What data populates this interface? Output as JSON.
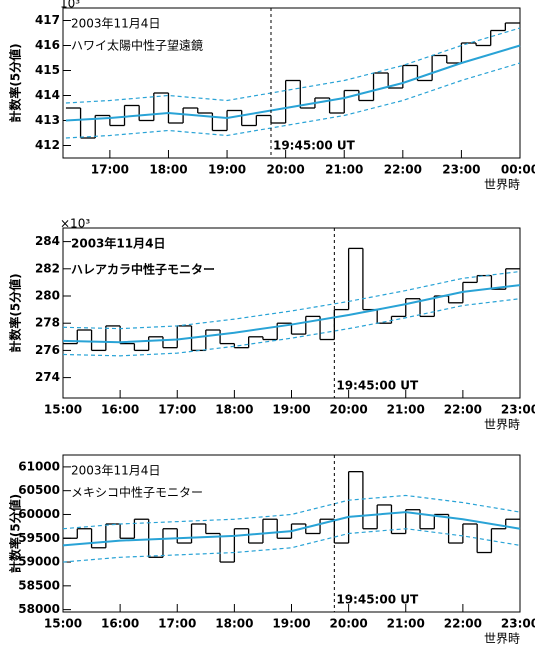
{
  "chart_data": [
    {
      "type": "step",
      "date": "2003年11月4日",
      "station": "ハワイ太陽中性子望遠鏡",
      "multiplier": "10³",
      "ylabel": "計数率(5分値)",
      "xlabel": "世界時",
      "marker": {
        "x": 19.75,
        "label": "19:45:00 UT"
      },
      "xlim": [
        16.2,
        24
      ],
      "xticks": [
        {
          "value": 17,
          "label": "17:00"
        },
        {
          "value": 18,
          "label": "18:00"
        },
        {
          "value": 19,
          "label": "19:00"
        },
        {
          "value": 20,
          "label": "20:00"
        },
        {
          "value": 21,
          "label": "21:00"
        },
        {
          "value": 22,
          "label": "22:00"
        },
        {
          "value": 23,
          "label": "23:00"
        },
        {
          "value": 24,
          "label": "00:00"
        }
      ],
      "ylim": [
        411.5,
        417.5
      ],
      "yticks": [
        412,
        413,
        414,
        415,
        416,
        417
      ],
      "series": [
        {
          "color": "#000000",
          "bins": [
            16.25,
            16.5,
            16.75,
            17,
            17.25,
            17.5,
            17.75,
            18,
            18.25,
            18.5,
            18.75,
            19,
            19.25,
            19.5,
            19.75,
            20,
            20.25,
            20.5,
            20.75,
            21,
            21.25,
            21.5,
            21.75,
            22,
            22.25,
            22.5,
            22.75,
            23,
            23.25,
            23.5,
            23.75,
            24
          ],
          "values": [
            413.5,
            412.3,
            413.2,
            412.8,
            413.6,
            413.0,
            414.1,
            412.9,
            413.5,
            413.3,
            412.6,
            413.4,
            412.8,
            413.2,
            412.9,
            414.6,
            413.5,
            413.9,
            413.3,
            414.2,
            413.8,
            414.9,
            414.3,
            415.2,
            414.6,
            415.6,
            415.3,
            416.1,
            416.0,
            416.6,
            416.9
          ]
        },
        {
          "color": "#29a3d6",
          "x": [
            16.25,
            17,
            18,
            19,
            20,
            21,
            22,
            23,
            24
          ],
          "values": [
            413.0,
            413.1,
            413.3,
            413.1,
            413.5,
            413.9,
            414.5,
            415.3,
            416.0
          ]
        },
        {
          "color": "#29a3d6",
          "style": "dashed",
          "x": [
            16.25,
            17,
            18,
            19,
            20,
            21,
            22,
            23,
            24
          ],
          "values": [
            413.7,
            413.8,
            414.0,
            413.8,
            414.2,
            414.6,
            415.2,
            416.0,
            416.7
          ]
        },
        {
          "color": "#29a3d6",
          "style": "dashed",
          "x": [
            16.25,
            17,
            18,
            19,
            20,
            21,
            22,
            23,
            24
          ],
          "values": [
            412.3,
            412.4,
            412.6,
            412.4,
            412.8,
            413.2,
            413.8,
            414.6,
            415.3
          ]
        }
      ]
    },
    {
      "type": "step",
      "date": "2003年11月4日",
      "station": "ハレアカラ中性子モニター",
      "multiplier": "×10³",
      "ylabel": "計数率(5分値)",
      "xlabel": "世界時",
      "marker": {
        "x": 19.75,
        "label": "19:45:00 UT"
      },
      "xlim": [
        15,
        23
      ],
      "xticks": [
        {
          "value": 15,
          "label": "15:00"
        },
        {
          "value": 16,
          "label": "16:00"
        },
        {
          "value": 17,
          "label": "17:00"
        },
        {
          "value": 18,
          "label": "18:00"
        },
        {
          "value": 19,
          "label": "19:00"
        },
        {
          "value": 20,
          "label": "20:00"
        },
        {
          "value": 21,
          "label": "21:00"
        },
        {
          "value": 22,
          "label": "22:00"
        },
        {
          "value": 23,
          "label": "23:00"
        }
      ],
      "ylim": [
        272.5,
        285
      ],
      "yticks": [
        274,
        276,
        278,
        280,
        282,
        284
      ],
      "series": [
        {
          "color": "#000000",
          "bins": [
            15,
            15.25,
            15.5,
            15.75,
            16,
            16.25,
            16.5,
            16.75,
            17,
            17.25,
            17.5,
            17.75,
            18,
            18.25,
            18.5,
            18.75,
            19,
            19.25,
            19.5,
            19.75,
            20,
            20.25,
            20.5,
            20.75,
            21,
            21.25,
            21.5,
            21.75,
            22,
            22.25,
            22.5,
            22.75,
            23
          ],
          "values": [
            276.5,
            277.5,
            276,
            277.8,
            276.5,
            276,
            277,
            276.2,
            277.8,
            276,
            277.5,
            276.5,
            276.2,
            277,
            276.8,
            278,
            277.2,
            278.5,
            276.8,
            279,
            283.5,
            279,
            278,
            278.5,
            279.8,
            278.5,
            280,
            279.5,
            281,
            281.5,
            280.5,
            282
          ]
        },
        {
          "color": "#29a3d6",
          "x": [
            15,
            16,
            17,
            18,
            19,
            20,
            21,
            22,
            23
          ],
          "values": [
            276.7,
            276.6,
            276.8,
            277.3,
            277.9,
            278.6,
            279.4,
            280.3,
            280.8
          ]
        },
        {
          "color": "#29a3d6",
          "style": "dashed",
          "x": [
            15,
            16,
            17,
            18,
            19,
            20,
            21,
            22,
            23
          ],
          "values": [
            277.7,
            277.6,
            277.8,
            278.3,
            278.9,
            279.6,
            280.4,
            281.3,
            281.8
          ]
        },
        {
          "color": "#29a3d6",
          "style": "dashed",
          "x": [
            15,
            16,
            17,
            18,
            19,
            20,
            21,
            22,
            23
          ],
          "values": [
            275.7,
            275.6,
            275.8,
            276.3,
            276.9,
            277.6,
            278.4,
            279.3,
            279.8
          ]
        }
      ]
    },
    {
      "type": "step",
      "date": "2003年11月4日",
      "station": "メキシコ中性子モニター",
      "ylabel": "計数率(5分値)",
      "xlabel": "世界時",
      "marker": {
        "x": 19.75,
        "label": "19:45:00 UT"
      },
      "xlim": [
        15,
        23
      ],
      "xticks": [
        {
          "value": 15,
          "label": "15:00"
        },
        {
          "value": 16,
          "label": "16:00"
        },
        {
          "value": 17,
          "label": "17:00"
        },
        {
          "value": 18,
          "label": "18:00"
        },
        {
          "value": 19,
          "label": "19:00"
        },
        {
          "value": 20,
          "label": "20:00"
        },
        {
          "value": 21,
          "label": "21:00"
        },
        {
          "value": 22,
          "label": "22:00"
        },
        {
          "value": 23,
          "label": "23:00"
        }
      ],
      "ylim": [
        57950,
        61250
      ],
      "yticks": [
        58000,
        58500,
        59000,
        59500,
        60000,
        60500,
        61000
      ],
      "series": [
        {
          "color": "#000000",
          "bins": [
            15,
            15.25,
            15.5,
            15.75,
            16,
            16.25,
            16.5,
            16.75,
            17,
            17.25,
            17.5,
            17.75,
            18,
            18.25,
            18.5,
            18.75,
            19,
            19.25,
            19.5,
            19.75,
            20,
            20.25,
            20.5,
            20.75,
            21,
            21.25,
            21.5,
            21.75,
            22,
            22.25,
            22.5,
            22.75,
            23
          ],
          "values": [
            59500,
            59700,
            59300,
            59800,
            59500,
            59900,
            59100,
            59700,
            59400,
            59800,
            59600,
            59000,
            59700,
            59400,
            59900,
            59500,
            59800,
            59600,
            59900,
            59400,
            60900,
            59700,
            60200,
            59600,
            60100,
            59700,
            60000,
            59400,
            59800,
            59200,
            59700,
            59900
          ]
        },
        {
          "color": "#29a3d6",
          "x": [
            15,
            16,
            17,
            18,
            19,
            20,
            21,
            22,
            23
          ],
          "values": [
            59350,
            59450,
            59500,
            59550,
            59650,
            59950,
            60050,
            59900,
            59700
          ]
        },
        {
          "color": "#29a3d6",
          "style": "dashed",
          "x": [
            15,
            16,
            17,
            18,
            19,
            20,
            21,
            22,
            23
          ],
          "values": [
            59700,
            59800,
            59850,
            59900,
            60000,
            60300,
            60400,
            60250,
            60050
          ]
        },
        {
          "color": "#29a3d6",
          "style": "dashed",
          "x": [
            15,
            16,
            17,
            18,
            19,
            20,
            21,
            22,
            23
          ],
          "values": [
            59000,
            59100,
            59150,
            59200,
            59300,
            59600,
            59700,
            59550,
            59350
          ]
        }
      ]
    }
  ]
}
